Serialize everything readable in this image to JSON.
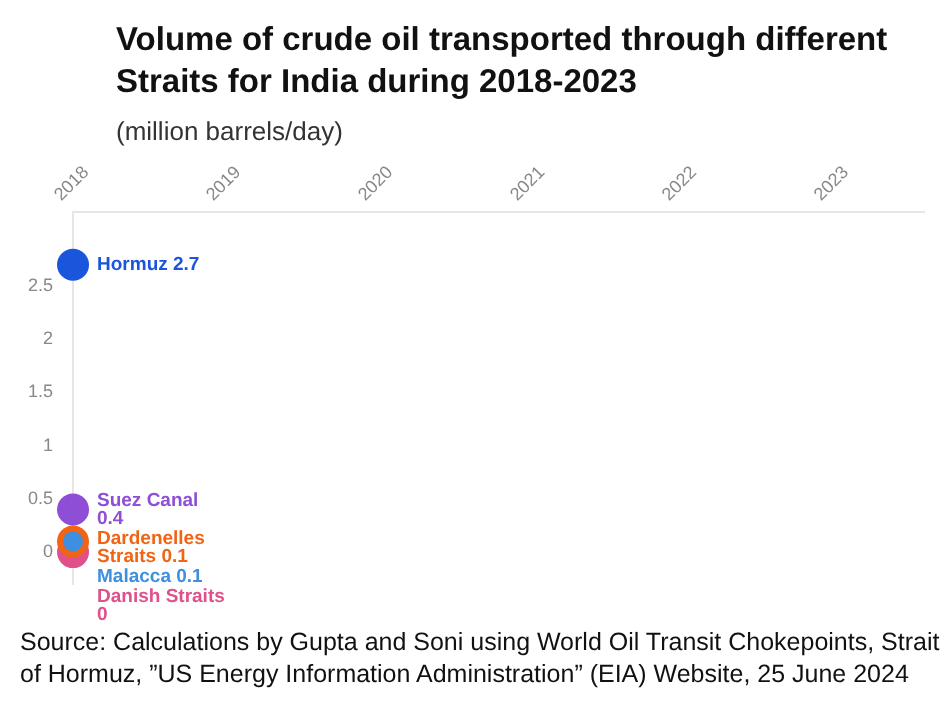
{
  "chart_data": {
    "type": "scatter",
    "title": "Volume of crude oil transported through different Straits for India during 2018-2023",
    "subtitle": "(million barrels/day)",
    "x": [
      2018
    ],
    "xlim": [
      2018,
      2023.6
    ],
    "xticks": [
      2018,
      2019,
      2020,
      2021,
      2022,
      2023
    ],
    "ylim": [
      -0.3,
      3.2
    ],
    "yticks": [
      0,
      0.5,
      1,
      1.5,
      2,
      2.5
    ],
    "series": [
      {
        "name": "Hormuz 2.7",
        "color": "#1a56db",
        "values": [
          2.7
        ]
      },
      {
        "name": "Suez Canal 0.4",
        "color": "#8e4fd6",
        "values": [
          0.4
        ]
      },
      {
        "name": "Dardenelles Straits 0.1",
        "color": "#f06414",
        "values": [
          0.1
        ]
      },
      {
        "name": "Malacca 0.1",
        "color": "#3f8fe0",
        "values": [
          0.1
        ]
      },
      {
        "name": "Danish Straits 0",
        "color": "#e0508a",
        "values": [
          0
        ]
      }
    ],
    "grid": false,
    "legend": false,
    "marker": "circle",
    "annotations": [
      "Source: Calculations by Gupta and Soni using World Oil Transit Chokepoints, Strait of Hormuz, ”US Energy Information Administration” (EIA) Website, 25 June 2024"
    ]
  }
}
